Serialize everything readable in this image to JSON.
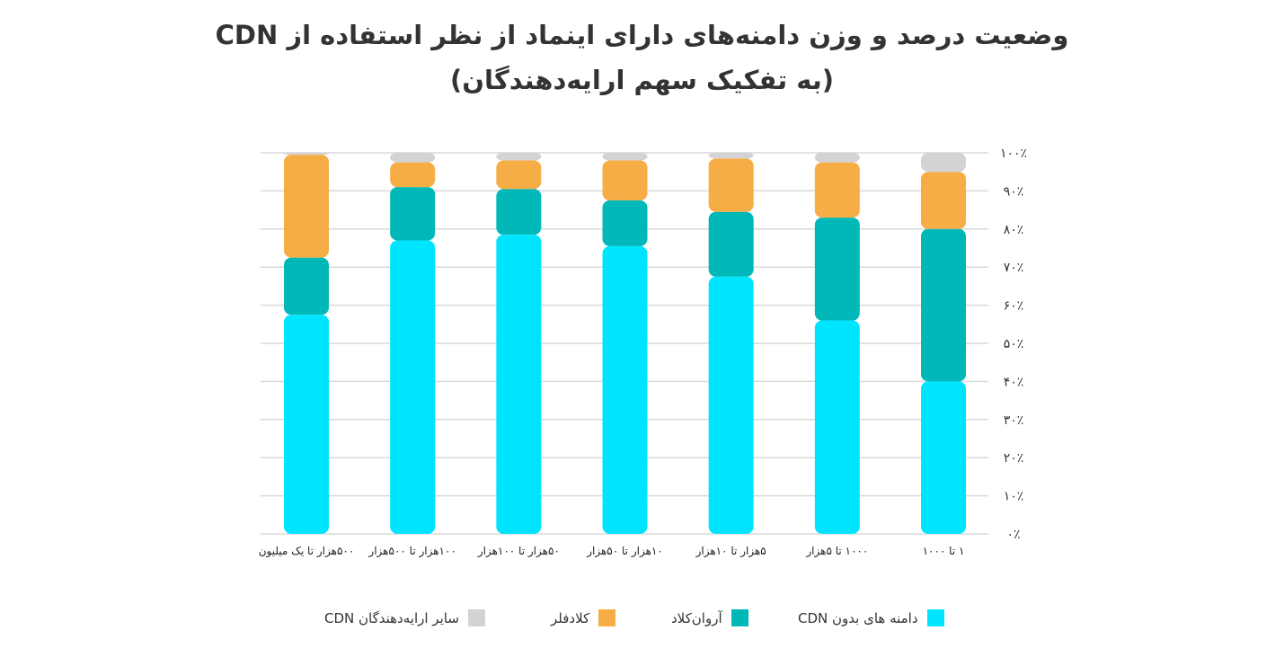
{
  "chart_data": {
    "type": "bar",
    "stacked": true,
    "title": "وضعیت درصد و وزن دامنه‌های دارای اینماد از نظر استفاده از CDN",
    "subtitle": "(به تفکیک سهم ارایه‌دهندگان)",
    "categories": [
      "۵۰۰هزار تا یک میلیون",
      "۱۰۰هزار تا ۵۰۰هزار",
      "۵۰هزار تا ۱۰۰هزار",
      "۱۰هزار تا ۵۰هزار",
      "۵هزار تا ۱۰هزار",
      "۱۰۰۰ تا ۵هزار",
      "۱ تا ۱۰۰۰"
    ],
    "series": [
      {
        "name": "دامنه های بدون CDN",
        "color": "#00E5FF",
        "values": [
          57.5,
          77,
          78.5,
          75.5,
          67.5,
          56,
          40
        ]
      },
      {
        "name": "آروان‌کلاد",
        "color": "#00B8B8",
        "values": [
          15,
          14,
          12,
          12,
          17,
          27,
          40
        ]
      },
      {
        "name": "کلادفلر",
        "color": "#F7AD45",
        "values": [
          27,
          6.5,
          7.5,
          10.5,
          14,
          14.5,
          15
        ]
      },
      {
        "name": "سایر ارایه‌دهندگان CDN",
        "color": "#D3D3D3",
        "values": [
          0.5,
          2.5,
          2,
          2,
          1.5,
          2.5,
          5
        ]
      }
    ],
    "y_ticks": [
      "۰٪",
      "۱۰٪",
      "۲۰٪",
      "۳۰٪",
      "۴۰٪",
      "۵۰٪",
      "۶۰٪",
      "۷۰٪",
      "۸۰٪",
      "۹۰٪",
      "۱۰۰٪"
    ],
    "ylim": [
      0,
      100
    ],
    "grid": true,
    "legend_position": "bottom",
    "legend_order": [
      0,
      1,
      2,
      3
    ]
  }
}
